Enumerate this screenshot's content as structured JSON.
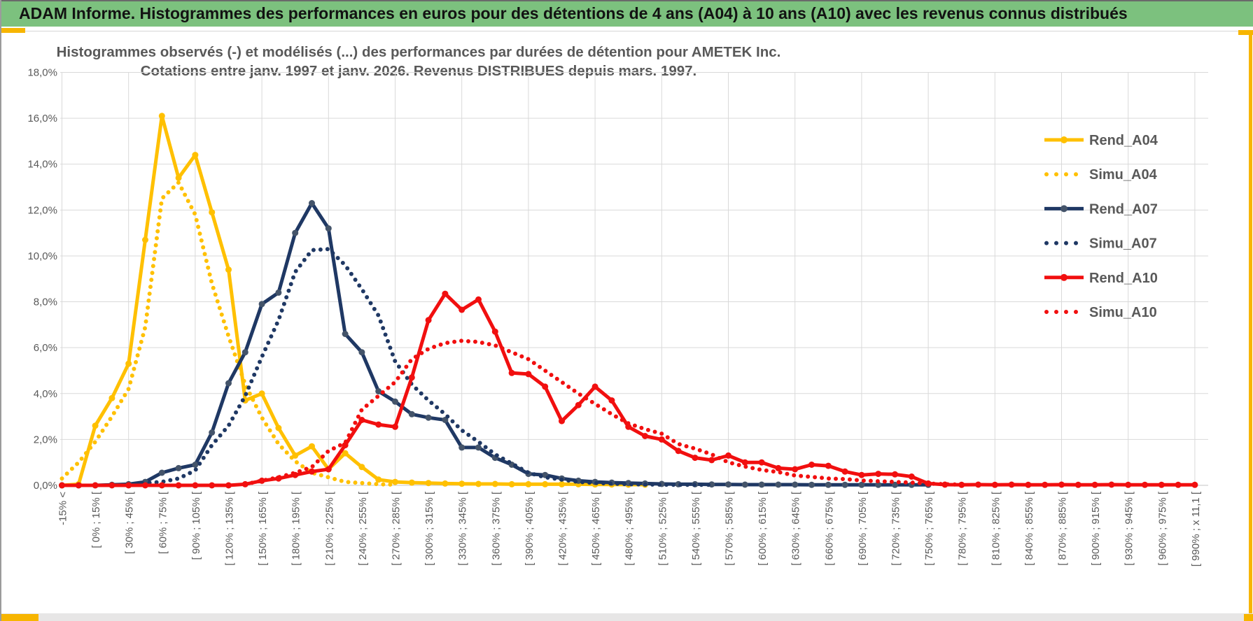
{
  "window": {
    "banner_title": "ADAM Informe. Histogrammes des performances en euros pour des détentions de 4 ans (A04) à 10 ans (A10) avec les revenus connus distribués"
  },
  "colors": {
    "banner_green": "#7CC17E",
    "accent_gold": "#F7B500",
    "series_gold": "#FFC000",
    "series_navy": "#1F3864",
    "series_navy_marker": "#44546A",
    "series_red": "#F10F0F",
    "grid": "#D9D9D9",
    "axis_text": "#595959"
  },
  "chart_data": {
    "type": "line",
    "title": "Histogrammes observés (-) et modélisés (...) des performances par durées de détention pour AMETEK Inc.",
    "subtitle": "Cotations entre janv. 1997 et janv. 2026. Revenus DISTRIBUES depuis mars. 1997.",
    "ylabel": "",
    "xlabel": "",
    "ylim": [
      0,
      18
    ],
    "y_tick_labels": [
      "18,0%",
      "16,0%",
      "14,0%",
      "12,0%",
      "10,0%",
      "8,0%",
      "6,0%",
      "4,0%",
      "2,0%",
      "0,0%"
    ],
    "grid": "on",
    "legend_position": "right",
    "bin_width_pct": 15,
    "n_bins": 69,
    "x_note": "69 bins of 15% width; axis labels are shown on every other bin (35 labels)",
    "categories": [
      "-15% <",
      "[ 0% ; 15% [",
      "[ 30% ; 45% [",
      "[ 60% ; 75% [",
      "[ 90% ; 105% [",
      "[ 120% ; 135% [",
      "[ 150% ; 165% [",
      "[ 180% ; 195% [",
      "[ 210% ; 225% [",
      "[ 240% ; 255% [",
      "[ 270% ; 285% [",
      "[ 300% ; 315% [",
      "[ 330% ; 345% [",
      "[ 360% ; 375% [",
      "[ 390% ; 405% [",
      "[ 420% ; 435% [",
      "[ 450% ; 465% [",
      "[ 480% ; 495% [",
      "[ 510% ; 525% [",
      "[ 540% ; 555% [",
      "[ 570% ; 585% [",
      "[ 600% ; 615% [",
      "[ 630% ; 645% [",
      "[ 660% ; 675% [",
      "[ 690% ; 705% [",
      "[ 720% ; 735% [",
      "[ 750% ; 765% [",
      "[ 780% ; 795% [",
      "[ 810% ; 825% [",
      "[ 840% ; 855% [",
      "[ 870% ; 885% [",
      "[ 900% ; 915% [",
      "[ 930% ; 945% [",
      "[ 960% ; 975% [",
      "[ 990% ; x 11,1 ["
    ],
    "series": [
      {
        "name": "Rend_A04",
        "style": "solid",
        "color": "#FFC000",
        "marker_color": "#FFC000",
        "values": [
          0,
          0.05,
          2.6,
          3.8,
          5.3,
          10.7,
          16.1,
          13.4,
          14.4,
          11.9,
          9.4,
          3.7,
          4.0,
          2.5,
          1.3,
          1.7,
          0.7,
          1.4,
          0.8,
          0.25,
          0.15,
          0.12,
          0.1,
          0.08,
          0.07,
          0.06,
          0.06,
          0.05,
          0.05,
          0.05,
          0.05,
          0.05,
          0.04,
          0.04,
          0.03,
          0.03,
          null,
          null,
          null,
          null,
          null,
          null,
          null,
          null,
          null,
          null,
          null,
          null,
          null,
          null,
          null,
          null,
          null,
          null,
          null,
          null,
          null,
          null,
          null,
          null,
          null,
          null,
          null,
          null,
          null,
          null,
          null,
          null,
          null
        ]
      },
      {
        "name": "Simu_A04",
        "style": "dotted",
        "color": "#FFC000",
        "marker_color": "#FFC000",
        "values": [
          0.3,
          1.0,
          1.9,
          3.0,
          4.2,
          6.9,
          12.5,
          13.2,
          11.8,
          8.8,
          6.5,
          4.4,
          2.95,
          1.8,
          1.05,
          0.55,
          0.35,
          0.15,
          0.1,
          0.05,
          0.03,
          null,
          null,
          null,
          null,
          null,
          null,
          null,
          null,
          null,
          null,
          null,
          null,
          null,
          null,
          null,
          null,
          null,
          null,
          null,
          null,
          null,
          null,
          null,
          null,
          null,
          null,
          null,
          null,
          null,
          null,
          null,
          null,
          null,
          null,
          null,
          null,
          null,
          null,
          null,
          null,
          null,
          null,
          null,
          null,
          null,
          null,
          null,
          null
        ]
      },
      {
        "name": "Rend_A07",
        "style": "solid",
        "color": "#1F3864",
        "marker_color": "#44546A",
        "values": [
          0,
          0,
          0,
          0.02,
          0.05,
          0.15,
          0.55,
          0.75,
          0.9,
          2.3,
          4.45,
          5.8,
          7.9,
          8.4,
          11.0,
          12.3,
          11.2,
          6.6,
          5.8,
          4.1,
          3.65,
          3.1,
          2.95,
          2.85,
          1.65,
          1.65,
          1.2,
          0.9,
          0.5,
          0.45,
          0.3,
          0.2,
          0.15,
          0.12,
          0.1,
          0.08,
          0.06,
          0.05,
          0.05,
          0.04,
          0.04,
          0.03,
          0.03,
          0.03,
          0.03,
          0.02,
          0.02,
          0.02,
          0.02,
          0.02,
          0.02,
          0.02,
          0.02,
          null,
          null,
          null,
          null,
          null,
          null,
          null,
          null,
          null,
          null,
          null,
          null,
          null,
          null,
          null,
          null
        ]
      },
      {
        "name": "Simu_A07",
        "style": "dotted",
        "color": "#1F3864",
        "marker_color": "#1F3864",
        "values": [
          null,
          null,
          null,
          null,
          0.05,
          0.1,
          0.15,
          0.3,
          0.65,
          1.75,
          2.6,
          3.9,
          5.6,
          7.2,
          9.3,
          10.25,
          10.3,
          9.6,
          8.55,
          7.4,
          5.4,
          4.4,
          3.7,
          3.1,
          2.4,
          1.9,
          1.35,
          0.95,
          0.55,
          0.35,
          0.25,
          0.15,
          0.1,
          0.08,
          0.05,
          0.04,
          0.03,
          0.02,
          0.02,
          0.02,
          null,
          null,
          null,
          null,
          null,
          null,
          null,
          null,
          null,
          null,
          null,
          null,
          null,
          null,
          null,
          null,
          null,
          null,
          null,
          null,
          null,
          null,
          null,
          null,
          null,
          null,
          null,
          null,
          null
        ]
      },
      {
        "name": "Rend_A10",
        "style": "solid",
        "color": "#F10F0F",
        "marker_color": "#F10F0F",
        "values": [
          0,
          0,
          0,
          0,
          0,
          0,
          0,
          0,
          0,
          0,
          0,
          0.05,
          0.2,
          0.3,
          0.45,
          0.6,
          0.7,
          1.75,
          2.85,
          2.65,
          2.55,
          4.7,
          7.2,
          8.35,
          7.65,
          8.1,
          6.7,
          4.9,
          4.85,
          4.3,
          2.8,
          3.5,
          4.3,
          3.7,
          2.55,
          2.15,
          2.0,
          1.5,
          1.2,
          1.1,
          1.3,
          1.0,
          1.0,
          0.75,
          0.7,
          0.9,
          0.85,
          0.6,
          0.45,
          0.5,
          0.48,
          0.38,
          0.08,
          0.03,
          0.02,
          0.03,
          0.02,
          0.03,
          0.02,
          0.02,
          0.03,
          0.02,
          0.02,
          0.03,
          0.02,
          0.02,
          0.02,
          0.02,
          0.02
        ]
      },
      {
        "name": "Simu_A10",
        "style": "dotted",
        "color": "#F10F0F",
        "marker_color": "#F10F0F",
        "values": [
          null,
          null,
          null,
          null,
          null,
          null,
          null,
          null,
          null,
          null,
          null,
          0.05,
          0.2,
          0.35,
          0.55,
          0.8,
          1.5,
          1.85,
          3.3,
          3.9,
          4.5,
          5.5,
          5.95,
          6.2,
          6.3,
          6.25,
          6.1,
          5.8,
          5.5,
          5.0,
          4.5,
          4.0,
          3.55,
          3.1,
          2.7,
          2.45,
          2.25,
          1.8,
          1.6,
          1.35,
          1.0,
          0.82,
          0.67,
          0.58,
          0.43,
          0.37,
          0.3,
          0.27,
          0.21,
          0.18,
          0.15,
          0.12,
          0.08,
          0.05,
          0.03,
          null,
          null,
          null,
          null,
          null,
          null,
          null,
          null,
          null,
          null,
          null,
          null,
          null,
          null
        ]
      }
    ]
  }
}
